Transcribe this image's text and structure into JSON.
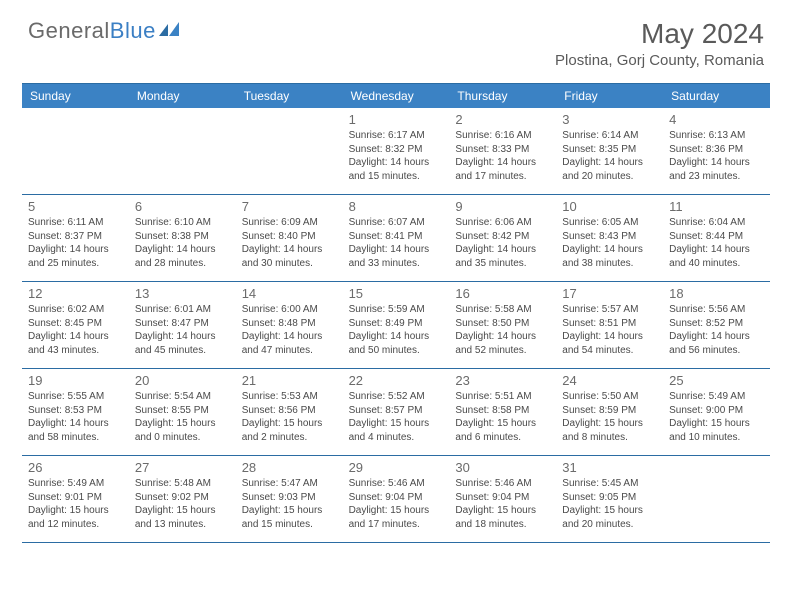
{
  "logo": {
    "text1": "General",
    "text2": "Blue"
  },
  "title": "May 2024",
  "location": "Plostina, Gorj County, Romania",
  "colors": {
    "header_bg": "#3b82c4",
    "header_text": "#ffffff",
    "border": "#2b6ca3",
    "page_bg": "#ffffff",
    "text": "#4a4a4a",
    "daynum": "#6b6b6b",
    "title_text": "#5a5a5a"
  },
  "dayHeaders": [
    "Sunday",
    "Monday",
    "Tuesday",
    "Wednesday",
    "Thursday",
    "Friday",
    "Saturday"
  ],
  "weeks": [
    [
      null,
      null,
      null,
      {
        "d": "1",
        "sr": "Sunrise: 6:17 AM",
        "ss": "Sunset: 8:32 PM",
        "dl1": "Daylight: 14 hours",
        "dl2": "and 15 minutes."
      },
      {
        "d": "2",
        "sr": "Sunrise: 6:16 AM",
        "ss": "Sunset: 8:33 PM",
        "dl1": "Daylight: 14 hours",
        "dl2": "and 17 minutes."
      },
      {
        "d": "3",
        "sr": "Sunrise: 6:14 AM",
        "ss": "Sunset: 8:35 PM",
        "dl1": "Daylight: 14 hours",
        "dl2": "and 20 minutes."
      },
      {
        "d": "4",
        "sr": "Sunrise: 6:13 AM",
        "ss": "Sunset: 8:36 PM",
        "dl1": "Daylight: 14 hours",
        "dl2": "and 23 minutes."
      }
    ],
    [
      {
        "d": "5",
        "sr": "Sunrise: 6:11 AM",
        "ss": "Sunset: 8:37 PM",
        "dl1": "Daylight: 14 hours",
        "dl2": "and 25 minutes."
      },
      {
        "d": "6",
        "sr": "Sunrise: 6:10 AM",
        "ss": "Sunset: 8:38 PM",
        "dl1": "Daylight: 14 hours",
        "dl2": "and 28 minutes."
      },
      {
        "d": "7",
        "sr": "Sunrise: 6:09 AM",
        "ss": "Sunset: 8:40 PM",
        "dl1": "Daylight: 14 hours",
        "dl2": "and 30 minutes."
      },
      {
        "d": "8",
        "sr": "Sunrise: 6:07 AM",
        "ss": "Sunset: 8:41 PM",
        "dl1": "Daylight: 14 hours",
        "dl2": "and 33 minutes."
      },
      {
        "d": "9",
        "sr": "Sunrise: 6:06 AM",
        "ss": "Sunset: 8:42 PM",
        "dl1": "Daylight: 14 hours",
        "dl2": "and 35 minutes."
      },
      {
        "d": "10",
        "sr": "Sunrise: 6:05 AM",
        "ss": "Sunset: 8:43 PM",
        "dl1": "Daylight: 14 hours",
        "dl2": "and 38 minutes."
      },
      {
        "d": "11",
        "sr": "Sunrise: 6:04 AM",
        "ss": "Sunset: 8:44 PM",
        "dl1": "Daylight: 14 hours",
        "dl2": "and 40 minutes."
      }
    ],
    [
      {
        "d": "12",
        "sr": "Sunrise: 6:02 AM",
        "ss": "Sunset: 8:45 PM",
        "dl1": "Daylight: 14 hours",
        "dl2": "and 43 minutes."
      },
      {
        "d": "13",
        "sr": "Sunrise: 6:01 AM",
        "ss": "Sunset: 8:47 PM",
        "dl1": "Daylight: 14 hours",
        "dl2": "and 45 minutes."
      },
      {
        "d": "14",
        "sr": "Sunrise: 6:00 AM",
        "ss": "Sunset: 8:48 PM",
        "dl1": "Daylight: 14 hours",
        "dl2": "and 47 minutes."
      },
      {
        "d": "15",
        "sr": "Sunrise: 5:59 AM",
        "ss": "Sunset: 8:49 PM",
        "dl1": "Daylight: 14 hours",
        "dl2": "and 50 minutes."
      },
      {
        "d": "16",
        "sr": "Sunrise: 5:58 AM",
        "ss": "Sunset: 8:50 PM",
        "dl1": "Daylight: 14 hours",
        "dl2": "and 52 minutes."
      },
      {
        "d": "17",
        "sr": "Sunrise: 5:57 AM",
        "ss": "Sunset: 8:51 PM",
        "dl1": "Daylight: 14 hours",
        "dl2": "and 54 minutes."
      },
      {
        "d": "18",
        "sr": "Sunrise: 5:56 AM",
        "ss": "Sunset: 8:52 PM",
        "dl1": "Daylight: 14 hours",
        "dl2": "and 56 minutes."
      }
    ],
    [
      {
        "d": "19",
        "sr": "Sunrise: 5:55 AM",
        "ss": "Sunset: 8:53 PM",
        "dl1": "Daylight: 14 hours",
        "dl2": "and 58 minutes."
      },
      {
        "d": "20",
        "sr": "Sunrise: 5:54 AM",
        "ss": "Sunset: 8:55 PM",
        "dl1": "Daylight: 15 hours",
        "dl2": "and 0 minutes."
      },
      {
        "d": "21",
        "sr": "Sunrise: 5:53 AM",
        "ss": "Sunset: 8:56 PM",
        "dl1": "Daylight: 15 hours",
        "dl2": "and 2 minutes."
      },
      {
        "d": "22",
        "sr": "Sunrise: 5:52 AM",
        "ss": "Sunset: 8:57 PM",
        "dl1": "Daylight: 15 hours",
        "dl2": "and 4 minutes."
      },
      {
        "d": "23",
        "sr": "Sunrise: 5:51 AM",
        "ss": "Sunset: 8:58 PM",
        "dl1": "Daylight: 15 hours",
        "dl2": "and 6 minutes."
      },
      {
        "d": "24",
        "sr": "Sunrise: 5:50 AM",
        "ss": "Sunset: 8:59 PM",
        "dl1": "Daylight: 15 hours",
        "dl2": "and 8 minutes."
      },
      {
        "d": "25",
        "sr": "Sunrise: 5:49 AM",
        "ss": "Sunset: 9:00 PM",
        "dl1": "Daylight: 15 hours",
        "dl2": "and 10 minutes."
      }
    ],
    [
      {
        "d": "26",
        "sr": "Sunrise: 5:49 AM",
        "ss": "Sunset: 9:01 PM",
        "dl1": "Daylight: 15 hours",
        "dl2": "and 12 minutes."
      },
      {
        "d": "27",
        "sr": "Sunrise: 5:48 AM",
        "ss": "Sunset: 9:02 PM",
        "dl1": "Daylight: 15 hours",
        "dl2": "and 13 minutes."
      },
      {
        "d": "28",
        "sr": "Sunrise: 5:47 AM",
        "ss": "Sunset: 9:03 PM",
        "dl1": "Daylight: 15 hours",
        "dl2": "and 15 minutes."
      },
      {
        "d": "29",
        "sr": "Sunrise: 5:46 AM",
        "ss": "Sunset: 9:04 PM",
        "dl1": "Daylight: 15 hours",
        "dl2": "and 17 minutes."
      },
      {
        "d": "30",
        "sr": "Sunrise: 5:46 AM",
        "ss": "Sunset: 9:04 PM",
        "dl1": "Daylight: 15 hours",
        "dl2": "and 18 minutes."
      },
      {
        "d": "31",
        "sr": "Sunrise: 5:45 AM",
        "ss": "Sunset: 9:05 PM",
        "dl1": "Daylight: 15 hours",
        "dl2": "and 20 minutes."
      },
      null
    ]
  ]
}
